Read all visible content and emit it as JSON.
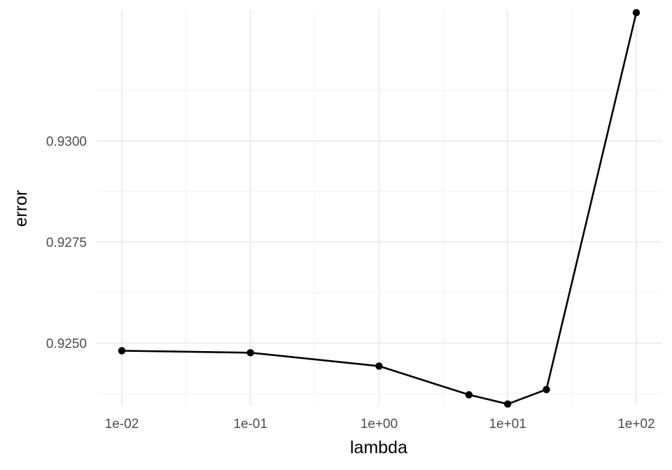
{
  "chart_data": {
    "type": "line",
    "title": "",
    "xlabel": "lambda",
    "ylabel": "error",
    "x_scale": "log10",
    "xlim": [
      0.01,
      100
    ],
    "ylim": [
      0.92345,
      0.93325
    ],
    "x_ticks": [
      0.01,
      0.1,
      1,
      10,
      100
    ],
    "x_tick_labels": [
      "1e-02",
      "1e-01",
      "1e+00",
      "1e+01",
      "1e+02"
    ],
    "y_ticks": [
      0.925,
      0.9275,
      0.93
    ],
    "y_tick_labels": [
      "0.9250",
      "0.9275",
      "0.9300"
    ],
    "grid": true,
    "series": [
      {
        "x": [
          0.01,
          0.1,
          1,
          5,
          10,
          20,
          100
        ],
        "y": [
          0.92481,
          0.92476,
          0.92443,
          0.92372,
          0.92349,
          0.92385,
          0.93318
        ],
        "color": "#000000",
        "markers": true
      }
    ]
  }
}
